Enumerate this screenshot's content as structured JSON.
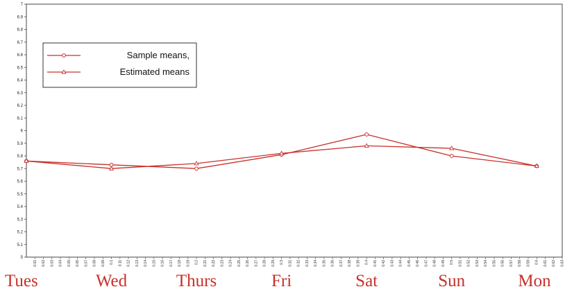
{
  "chart_data": {
    "type": "line",
    "x_min": 0.01,
    "x_max": 0.63,
    "x_step": 0.01,
    "x_ticks": [
      "0.01",
      "0.02",
      "0.03",
      "0.04",
      "0.05",
      "0.06",
      "0.07",
      "0.08",
      "0.09",
      "0.1",
      "0.11",
      "0.12",
      "0.13",
      "0.14",
      "0.15",
      "0.16",
      "0.17",
      "0.18",
      "0.19",
      "0.2",
      "0.21",
      "0.22",
      "0.23",
      "0.24",
      "0.25",
      "0.26",
      "0.27",
      "0.28",
      "0.29",
      "0.3",
      "0.31",
      "0.32",
      "0.33",
      "0.34",
      "0.35",
      "0.36",
      "0.37",
      "0.38",
      "0.39",
      "0.4",
      "0.41",
      "0.42",
      "0.43",
      "0.44",
      "0.45",
      "0.46",
      "0.47",
      "0.48",
      "0.49",
      "0.5",
      "0.51",
      "0.52",
      "0.53",
      "0.54",
      "0.55",
      "0.56",
      "0.57",
      "0.58",
      "0.59",
      "0.6",
      "0.61",
      "0.62",
      "0.63"
    ],
    "ylim": [
      5,
      7
    ],
    "y_ticks": [
      "5",
      "5.1",
      "5.2",
      "5.3",
      "5.4",
      "5.5",
      "5.6",
      "5.7",
      "5.8",
      "5.9",
      "6",
      "6.1",
      "6.2",
      "6.3",
      "6.4",
      "6.5",
      "6.6",
      "6.7",
      "6.8",
      "6.9",
      "7"
    ],
    "categories": [
      "Tues",
      "Wed",
      "Thurs",
      "Fri",
      "Sat",
      "Sun",
      "Mon"
    ],
    "category_x": [
      0.0,
      0.1,
      0.2,
      0.3,
      0.4,
      0.5,
      0.6
    ],
    "series": [
      {
        "name": "Sample means,",
        "marker": "circle",
        "color": "#c8302a",
        "x": [
          0.0,
          0.1,
          0.2,
          0.3,
          0.4,
          0.5,
          0.6
        ],
        "values": [
          5.76,
          5.73,
          5.7,
          5.81,
          5.97,
          5.8,
          5.72
        ]
      },
      {
        "name": "Estimated means",
        "marker": "triangle",
        "color": "#c8302a",
        "x": [
          0.0,
          0.1,
          0.2,
          0.3,
          0.4,
          0.5,
          0.6
        ],
        "values": [
          5.76,
          5.7,
          5.74,
          5.82,
          5.88,
          5.86,
          5.72
        ]
      }
    ],
    "legend_placement": "top-left",
    "grid": false
  }
}
